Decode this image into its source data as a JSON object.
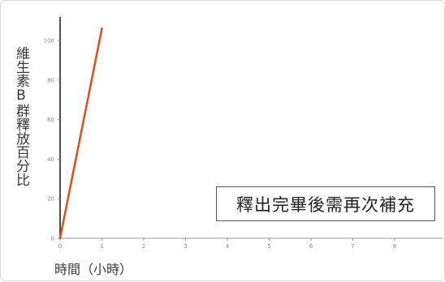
{
  "chart_data": {
    "type": "line",
    "title": "",
    "xlabel": "時間（小時）",
    "ylabel": "維生素B群釋放百分比",
    "xlim": [
      0,
      9
    ],
    "ylim": [
      0,
      110
    ],
    "x_ticks": [
      "0",
      "1",
      "2",
      "3",
      "4",
      "5",
      "6",
      "7",
      "8"
    ],
    "y_ticks": [
      "0",
      "20",
      "40",
      "60",
      "80",
      "100"
    ],
    "series": [
      {
        "color": "#d9541e",
        "x": [
          0,
          1
        ],
        "y": [
          0,
          106
        ]
      }
    ],
    "annotation": "釋出完畢後需再次補充",
    "grid": false
  }
}
